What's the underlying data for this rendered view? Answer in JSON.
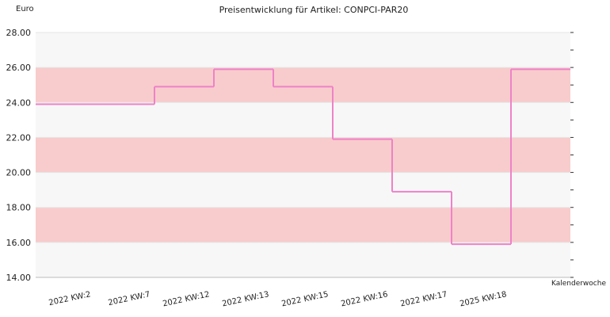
{
  "chart_data": {
    "type": "step",
    "title": "Preisentwicklung für Artikel: CONPCI-PAR20",
    "y_label": "Euro",
    "x_label": "Kalenderwoche",
    "categories": [
      "2022 KW:2",
      "2022 KW:7",
      "2022 KW:12",
      "2022 KW:13",
      "2022 KW:15",
      "2022 KW:16",
      "2022 KW:17",
      "2025 KW:18",
      null
    ],
    "values": [
      23.9,
      23.9,
      24.9,
      25.9,
      24.9,
      21.9,
      18.9,
      15.9,
      25.9
    ],
    "color": "#ee82c8",
    "ylim": [
      14,
      28
    ],
    "yticks": [
      {
        "value": 14,
        "label": "14.00"
      },
      {
        "value": 16,
        "label": "16.00"
      },
      {
        "value": 18,
        "label": "18.00"
      },
      {
        "value": 20,
        "label": "20.00"
      },
      {
        "value": 22,
        "label": "22.00"
      },
      {
        "value": 24,
        "label": "24.00"
      },
      {
        "value": 26,
        "label": "26.00"
      },
      {
        "value": 28,
        "label": "28.00"
      }
    ],
    "minor_yticks": [
      15,
      17,
      19,
      21,
      23,
      25,
      27
    ],
    "band_colors": [
      "#f7f7f7",
      "#f8cccc"
    ],
    "grid": true
  }
}
